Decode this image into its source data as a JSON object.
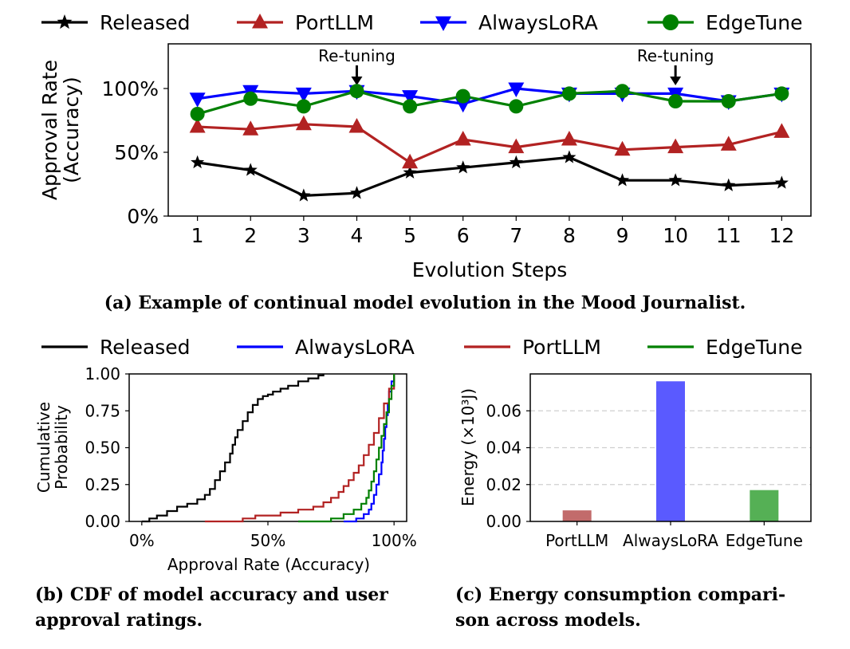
{
  "chart_data": [
    {
      "type": "line",
      "caption": "(a) Example of continual model evolution in the Mood Journalist.",
      "xlabel": "Evolution Steps",
      "ylabel": "Approval Rate\n(Accuracy)",
      "x": [
        1,
        2,
        3,
        4,
        5,
        6,
        7,
        8,
        9,
        10,
        11,
        12
      ],
      "x_tick_labels": [
        "1",
        "2",
        "3",
        "4",
        "5",
        "6",
        "7",
        "8",
        "9",
        "10",
        "11",
        "12"
      ],
      "y_tick_labels": [
        "0%",
        "50%",
        "100%"
      ],
      "y_ticks": [
        0,
        50,
        100
      ],
      "ylim": [
        0,
        135
      ],
      "xlim": [
        0.45,
        12.55
      ],
      "legend_position": "top",
      "series": [
        {
          "name": "Released",
          "color": "#000000",
          "marker": "star",
          "values": [
            42,
            36,
            16,
            18,
            34,
            38,
            42,
            46,
            28,
            28,
            24,
            26
          ]
        },
        {
          "name": "PortLLM",
          "color": "#b22222",
          "marker": "triangle-up",
          "values": [
            70,
            68,
            72,
            70,
            42,
            60,
            54,
            60,
            52,
            54,
            56,
            66
          ]
        },
        {
          "name": "AlwaysLoRA",
          "color": "#0000ff",
          "marker": "triangle-down",
          "values": [
            92,
            98,
            96,
            98,
            94,
            88,
            100,
            96,
            96,
            96,
            90,
            96
          ]
        },
        {
          "name": "EdgeTune",
          "color": "#008000",
          "marker": "circle",
          "values": [
            80,
            92,
            86,
            98,
            86,
            94,
            86,
            96,
            98,
            90,
            90,
            96
          ]
        }
      ],
      "annotations": [
        {
          "text": "Re-tuning",
          "x": 4
        },
        {
          "text": "Re-tuning",
          "x": 10
        }
      ]
    },
    {
      "type": "line",
      "subtype": "cdf",
      "caption": "(b) CDF of model accuracy and user approval ratings.",
      "xlabel": "Approval Rate (Accuracy)",
      "ylabel": "Cumulative\nProbability",
      "xlim": [
        -5,
        105
      ],
      "ylim": [
        0,
        1
      ],
      "x_ticks": [
        0,
        50,
        100
      ],
      "x_tick_labels": [
        "0%",
        "50%",
        "100%"
      ],
      "y_ticks": [
        0,
        0.25,
        0.5,
        0.75,
        1.0
      ],
      "y_tick_labels": [
        "0.00",
        "0.25",
        "0.50",
        "0.75",
        "1.00"
      ],
      "legend_position": "top",
      "series": [
        {
          "name": "Released",
          "color": "#000000",
          "x": [
            0,
            3,
            6,
            10,
            14,
            18,
            22,
            25,
            27,
            29,
            31,
            33,
            35,
            36,
            37,
            38,
            40,
            42,
            44,
            46,
            48,
            50,
            52,
            55,
            58,
            62,
            66,
            70,
            72
          ],
          "y": [
            0,
            0.02,
            0.04,
            0.07,
            0.1,
            0.12,
            0.15,
            0.18,
            0.22,
            0.28,
            0.34,
            0.4,
            0.46,
            0.52,
            0.57,
            0.62,
            0.68,
            0.74,
            0.79,
            0.83,
            0.85,
            0.86,
            0.88,
            0.9,
            0.92,
            0.95,
            0.97,
            0.99,
            1.0
          ]
        },
        {
          "name": "AlwaysLoRA",
          "color": "#0000ff",
          "x": [
            80,
            85,
            88,
            90,
            91,
            92,
            93,
            94,
            95,
            95.5,
            96,
            96.5,
            97,
            97.5,
            98,
            99,
            100
          ],
          "y": [
            0,
            0.02,
            0.05,
            0.08,
            0.12,
            0.18,
            0.25,
            0.32,
            0.4,
            0.48,
            0.56,
            0.64,
            0.72,
            0.8,
            0.88,
            0.95,
            1.0
          ]
        },
        {
          "name": "PortLLM",
          "color": "#b22222",
          "x": [
            25,
            40,
            45,
            55,
            62,
            68,
            72,
            75,
            78,
            80,
            82,
            84,
            86,
            88,
            90,
            92,
            94,
            96,
            98,
            100
          ],
          "y": [
            0,
            0.02,
            0.04,
            0.06,
            0.08,
            0.1,
            0.13,
            0.16,
            0.2,
            0.24,
            0.28,
            0.33,
            0.38,
            0.45,
            0.52,
            0.6,
            0.7,
            0.8,
            0.9,
            1.0
          ]
        },
        {
          "name": "EdgeTune",
          "color": "#008000",
          "x": [
            62,
            75,
            80,
            84,
            87,
            89,
            90,
            91,
            92,
            93,
            94,
            95,
            96,
            97,
            98,
            99,
            100
          ],
          "y": [
            0,
            0.02,
            0.05,
            0.08,
            0.12,
            0.16,
            0.21,
            0.27,
            0.34,
            0.42,
            0.5,
            0.58,
            0.66,
            0.74,
            0.83,
            0.92,
            1.0
          ]
        }
      ]
    },
    {
      "type": "bar",
      "caption": "(c) Energy consumption comparison across models.",
      "ylabel": "Energy (×10³J)",
      "categories": [
        "PortLLM",
        "AlwaysLoRA",
        "EdgeTune"
      ],
      "values": [
        0.006,
        0.076,
        0.017
      ],
      "colors": [
        "#c26b6b",
        "#5a5aff",
        "#55b055"
      ],
      "ylim": [
        0,
        0.08
      ],
      "y_ticks": [
        0,
        0.02,
        0.04,
        0.06
      ],
      "y_tick_labels": [
        "0.00",
        "0.02",
        "0.04",
        "0.06"
      ],
      "grid": true
    }
  ]
}
